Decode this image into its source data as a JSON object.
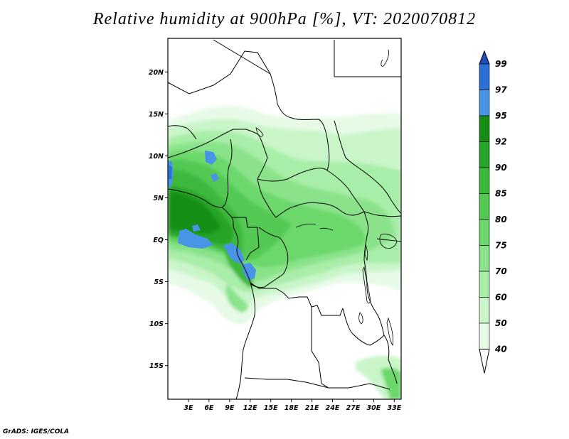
{
  "title": "Relative humidity at 900hPa [%], VT: 2020070812",
  "credit": "GrADS: IGES/COLA",
  "map": {
    "lat_ticks": [
      "20N",
      "15N",
      "10N",
      "5N",
      "EQ",
      "5S",
      "10S",
      "15S"
    ],
    "lon_ticks": [
      "3E",
      "6E",
      "9E",
      "12E",
      "15E",
      "18E",
      "21E",
      "24E",
      "27E",
      "30E",
      "33E"
    ],
    "lat_range": [
      -19,
      24
    ],
    "lon_range": [
      0,
      34
    ]
  },
  "colorbar": {
    "labels": [
      "40",
      "50",
      "60",
      "70",
      "75",
      "80",
      "85",
      "90",
      "92",
      "95",
      "97",
      "99"
    ],
    "colors": [
      "#ffffff",
      "#e6fae6",
      "#c9f5c9",
      "#a8eda8",
      "#8ae38a",
      "#6cd86c",
      "#52c952",
      "#3cb83c",
      "#28a428",
      "#148f14",
      "#4a94e8",
      "#2c6fd6",
      "#1c4fb8"
    ]
  }
}
